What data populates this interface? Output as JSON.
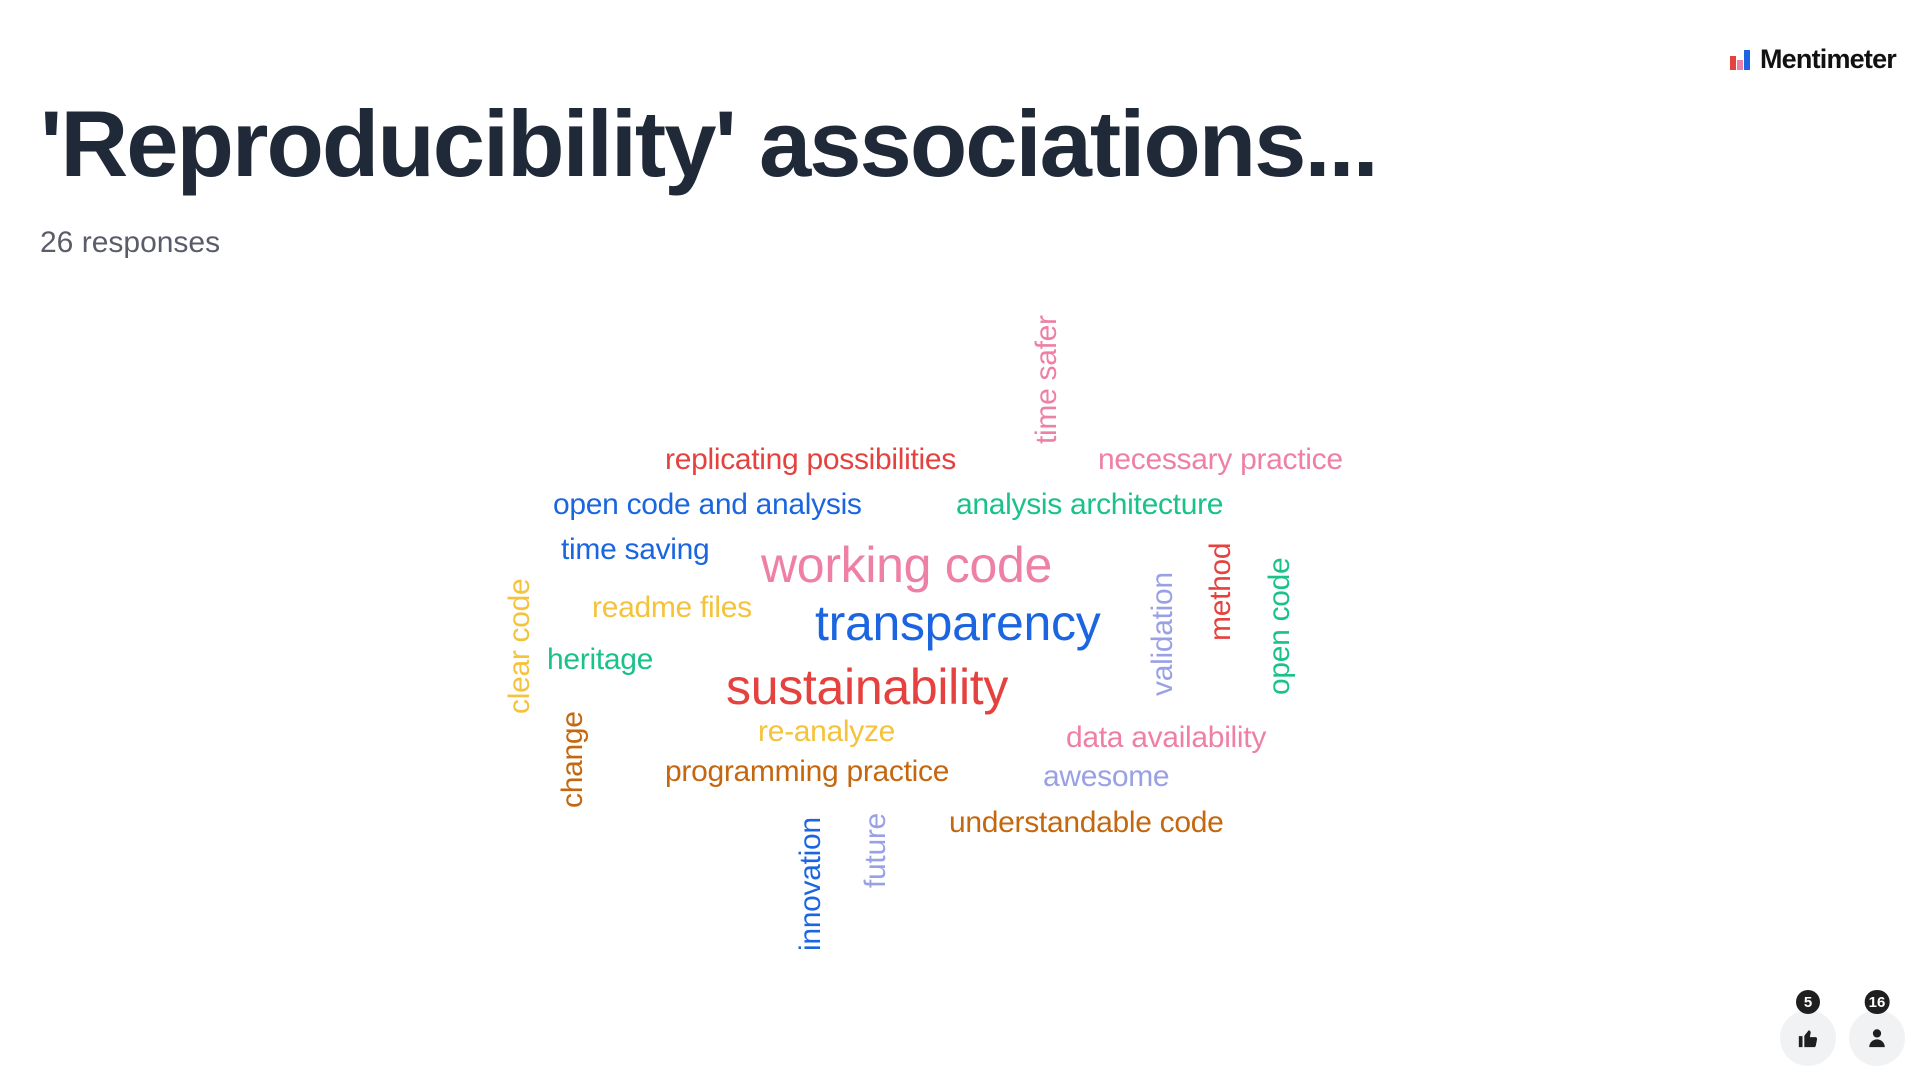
{
  "brand": {
    "name": "Mentimeter"
  },
  "slide": {
    "title": "'Reproducibility' associations...",
    "subtitle": "26 responses"
  },
  "colors": {
    "title": "#1f2937",
    "subtitle": "#5a5d69",
    "red": "#e5423f",
    "pink": "#ee7fa6",
    "blue": "#1b66e0",
    "green": "#19c28a",
    "yellow": "#f5c23b",
    "orange": "#c4670f",
    "lavender": "#9aa0e6"
  },
  "word_cloud": {
    "words": [
      {
        "text": "time safer",
        "color": "#ee7fa6",
        "orientation": "vertical"
      },
      {
        "text": "replicating possibilities",
        "color": "#e5423f",
        "orientation": "horizontal"
      },
      {
        "text": "necessary practice",
        "color": "#ee7fa6",
        "orientation": "horizontal"
      },
      {
        "text": "open code and analysis",
        "color": "#1b66e0",
        "orientation": "horizontal"
      },
      {
        "text": "analysis architecture",
        "color": "#19c28a",
        "orientation": "horizontal"
      },
      {
        "text": "time saving",
        "color": "#1b66e0",
        "orientation": "horizontal"
      },
      {
        "text": "working code",
        "color": "#ee7fa6",
        "orientation": "horizontal"
      },
      {
        "text": "method",
        "color": "#e5423f",
        "orientation": "vertical"
      },
      {
        "text": "open code",
        "color": "#19c28a",
        "orientation": "vertical"
      },
      {
        "text": "validation",
        "color": "#9aa0e6",
        "orientation": "vertical"
      },
      {
        "text": "clear code",
        "color": "#f5c23b",
        "orientation": "vertical"
      },
      {
        "text": "readme files",
        "color": "#f5c23b",
        "orientation": "horizontal"
      },
      {
        "text": "transparency",
        "color": "#1b66e0",
        "orientation": "horizontal"
      },
      {
        "text": "heritage",
        "color": "#19c28a",
        "orientation": "horizontal"
      },
      {
        "text": "sustainability",
        "color": "#e5423f",
        "orientation": "horizontal"
      },
      {
        "text": "change",
        "color": "#c4670f",
        "orientation": "vertical"
      },
      {
        "text": "re-analyze",
        "color": "#f5c23b",
        "orientation": "horizontal"
      },
      {
        "text": "data availability",
        "color": "#ee7fa6",
        "orientation": "horizontal"
      },
      {
        "text": "programming practice",
        "color": "#c4670f",
        "orientation": "horizontal"
      },
      {
        "text": "awesome",
        "color": "#9aa0e6",
        "orientation": "horizontal"
      },
      {
        "text": "understandable code",
        "color": "#c4670f",
        "orientation": "horizontal"
      },
      {
        "text": "innovation",
        "color": "#1b66e0",
        "orientation": "vertical"
      },
      {
        "text": "future",
        "color": "#9aa0e6",
        "orientation": "vertical"
      }
    ]
  },
  "reactions": {
    "likes": {
      "count": "5",
      "icon": "thumbs-up-icon"
    },
    "participants": {
      "count": "16",
      "icon": "person-icon"
    }
  }
}
